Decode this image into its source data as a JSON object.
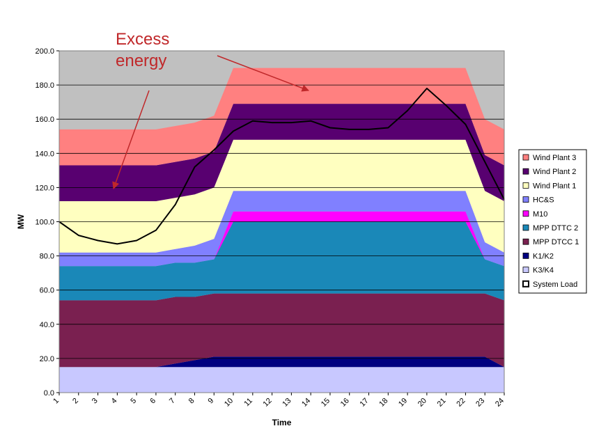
{
  "chart_data": {
    "type": "area",
    "xlabel": "Time",
    "ylabel": "MW",
    "ylim": [
      0,
      200
    ],
    "yticks": [
      0,
      20,
      40,
      60,
      80,
      100,
      120,
      140,
      160,
      180,
      200
    ],
    "ytick_labels": [
      "0.0",
      "20.0",
      "40.0",
      "60.0",
      "80.0",
      "100.0",
      "120.0",
      "140.0",
      "160.0",
      "180.0",
      "200.0"
    ],
    "x": [
      "1",
      "2",
      "3",
      "4",
      "5",
      "6",
      "7",
      "8",
      "9",
      "10",
      "11",
      "12",
      "13",
      "14",
      "15",
      "16",
      "17",
      "18",
      "19",
      "20",
      "21",
      "22",
      "23",
      "24"
    ],
    "grid": true,
    "plot_background": "#c0c0c0",
    "stacked_series": [
      {
        "name": "K3/K4",
        "color": "#c8c8ff",
        "values": [
          15,
          15,
          15,
          15,
          15,
          15,
          15,
          15,
          15,
          15,
          15,
          15,
          15,
          15,
          15,
          15,
          15,
          15,
          15,
          15,
          15,
          15,
          15,
          15
        ]
      },
      {
        "name": "K1/K2",
        "color": "#000080",
        "values": [
          0,
          0,
          0,
          0,
          0,
          0,
          2,
          4,
          6,
          6,
          6,
          6,
          6,
          6,
          6,
          6,
          6,
          6,
          6,
          6,
          6,
          6,
          6,
          0
        ]
      },
      {
        "name": "MPP DTCC 1",
        "color": "#7a2050",
        "values": [
          39,
          39,
          39,
          39,
          39,
          39,
          39,
          37,
          37,
          37,
          37,
          37,
          37,
          37,
          37,
          37,
          37,
          37,
          37,
          37,
          37,
          37,
          37,
          39
        ]
      },
      {
        "name": "MPP DTTC 2",
        "color": "#1a88b8",
        "values": [
          20,
          20,
          20,
          20,
          20,
          20,
          20,
          20,
          20,
          42,
          42,
          42,
          42,
          42,
          42,
          42,
          42,
          42,
          42,
          42,
          42,
          42,
          20,
          20
        ]
      },
      {
        "name": "M10",
        "color": "#ff00ff",
        "values": [
          0,
          0,
          0,
          0,
          0,
          0,
          0,
          0,
          0,
          6,
          6,
          6,
          6,
          6,
          6,
          6,
          6,
          6,
          6,
          6,
          6,
          6,
          0,
          0
        ]
      },
      {
        "name": "HC&S",
        "color": "#8080ff",
        "values": [
          8,
          8,
          8,
          8,
          8,
          8,
          8,
          10,
          12,
          12,
          12,
          12,
          12,
          12,
          12,
          12,
          12,
          12,
          12,
          12,
          12,
          12,
          10,
          8
        ]
      },
      {
        "name": "Wind Plant 1",
        "color": "#ffffc0",
        "values": [
          30,
          30,
          30,
          30,
          30,
          30,
          30,
          30,
          30,
          30,
          30,
          30,
          30,
          30,
          30,
          30,
          30,
          30,
          30,
          30,
          30,
          30,
          30,
          30
        ]
      },
      {
        "name": "Wind Plant 2",
        "color": "#580070",
        "values": [
          21,
          21,
          21,
          21,
          21,
          21,
          21,
          21,
          21,
          21,
          21,
          21,
          21,
          21,
          21,
          21,
          21,
          21,
          21,
          21,
          21,
          21,
          21,
          21
        ]
      },
      {
        "name": "Wind Plant 3",
        "color": "#ff8080",
        "values": [
          21,
          21,
          21,
          21,
          21,
          21,
          21,
          21,
          21,
          21,
          21,
          21,
          21,
          21,
          21,
          21,
          21,
          21,
          21,
          21,
          21,
          21,
          21,
          21
        ]
      }
    ],
    "line_series": [
      {
        "name": "System Load",
        "color": "#000000",
        "values": [
          100,
          92,
          89,
          87,
          89,
          95,
          110,
          132,
          142,
          153,
          159,
          158,
          158,
          159,
          155,
          154,
          154,
          155,
          165,
          178,
          168,
          157,
          135,
          113
        ]
      }
    ],
    "legend": {
      "placement": "right",
      "order": [
        "Wind Plant 3",
        "Wind Plant 2",
        "Wind Plant 1",
        "HC&S",
        "M10",
        "MPP DTTC 2",
        "MPP DTCC 1",
        "K1/K2",
        "K3/K4",
        "System Load"
      ]
    },
    "annotations": [
      {
        "text_lines": [
          "Excess",
          "energy"
        ],
        "color": "#c0282a"
      }
    ]
  }
}
